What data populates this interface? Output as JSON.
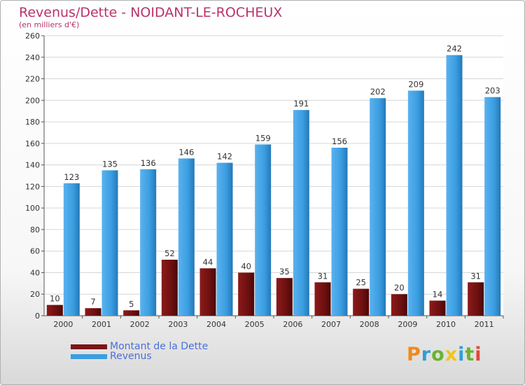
{
  "title": "Revenus/Dette - NOIDANT-LE-ROCHEUX",
  "subtitle": "(en milliers d'€)",
  "logo": {
    "text": "Proxiti",
    "letter_colors": [
      "#f08a1c",
      "#2e9ed8",
      "#6bb32e",
      "#f0c419",
      "#2e9ed8",
      "#6bb32e",
      "#e0483a"
    ]
  },
  "colors": {
    "dette": "#7a1515",
    "revenus": "#3a9de0",
    "grid": "#d6d6d6",
    "axis_text": "#333333",
    "legend_text": "#4a6fd8"
  },
  "chart_data": {
    "type": "bar",
    "title": "Revenus/Dette - NOIDANT-LE-ROCHEUX",
    "ylabel": "(en milliers d'€)",
    "ylim": [
      0,
      260
    ],
    "ytick_step": 20,
    "yticks": [
      "0",
      "20",
      "40",
      "60",
      "80",
      "100",
      "120",
      "140",
      "160",
      "180",
      "200",
      "220",
      "240",
      "260"
    ],
    "grid": true,
    "legend_position": "bottom-left",
    "categories": [
      "2000",
      "2001",
      "2002",
      "2003",
      "2004",
      "2005",
      "2006",
      "2007",
      "2008",
      "2009",
      "2010",
      "2011"
    ],
    "series": [
      {
        "name": "Montant de la Dette",
        "values": [
          10,
          7,
          5,
          52,
          44,
          40,
          35,
          31,
          25,
          20,
          14,
          31
        ],
        "labels": [
          "10",
          "7",
          "5",
          "52",
          "44",
          "40",
          "35",
          "31",
          "25",
          "20",
          "14",
          "31"
        ]
      },
      {
        "name": "Revenus",
        "values": [
          123,
          135,
          136,
          146,
          142,
          159,
          191,
          156,
          202,
          209,
          242,
          203
        ],
        "labels": [
          "123",
          "135",
          "136",
          "146",
          "142",
          "159",
          "191",
          "156",
          "202",
          "209",
          "242",
          "203"
        ]
      }
    ]
  }
}
